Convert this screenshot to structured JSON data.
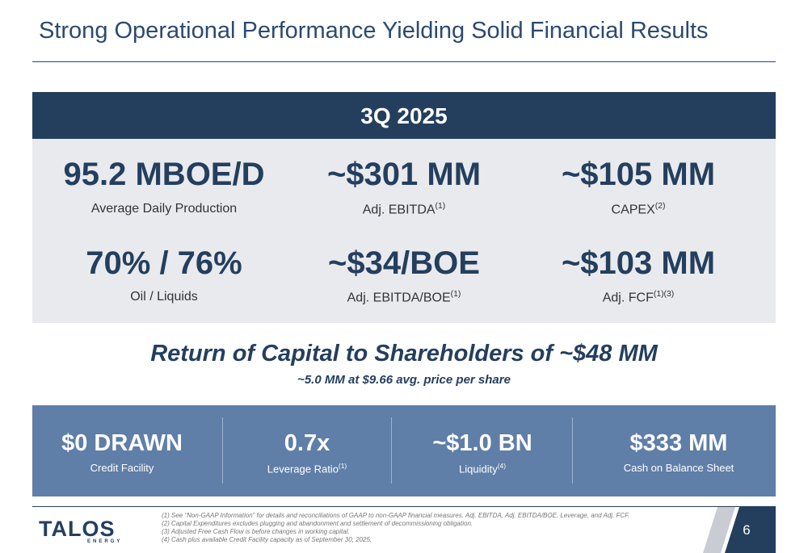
{
  "header": {
    "title": "Strong Operational Performance Yielding Solid Financial Results"
  },
  "banner": {
    "period": "3Q 2025"
  },
  "metrics": [
    {
      "value": "95.2 MBOE/D",
      "label": "Average Daily Production"
    },
    {
      "value": "~$301 MM",
      "label": "Adj. EBITDA",
      "note": "(1)"
    },
    {
      "value": "~$105 MM",
      "label": "CAPEX",
      "note": "(2)"
    },
    {
      "value": "70% / 76%",
      "label": "Oil / Liquids"
    },
    {
      "value": "~$34/BOE",
      "label": "Adj. EBITDA/BOE",
      "note": "(1)"
    },
    {
      "value": "~$103 MM",
      "label": "Adj. FCF",
      "note": "(1)(3)"
    }
  ],
  "return": {
    "title": "Return of Capital to Shareholders of ~$48 MM",
    "subtitle": "~5.0 MM at $9.66 avg. price per share"
  },
  "balance": [
    {
      "value": "$0 DRAWN",
      "label": "Credit Facility"
    },
    {
      "value": "0.7x",
      "label": "Leverage Ratio",
      "note": "(1)"
    },
    {
      "value": "~$1.0 BN",
      "label": "Liquidity",
      "note": "(4)"
    },
    {
      "value": "$333 MM",
      "label": "Cash on Balance Sheet"
    }
  ],
  "footer": {
    "logo": "TALOS",
    "logo_sub": "ENERGY",
    "footnotes": [
      "(1)  See “Non-GAAP Information” for details and reconciliations of GAAP to non-GAAP financial measures. Adj. EBITDA, Adj. EBITDA/BOE, Leverage, and Adj. FCF.",
      "(2)  Capital Expenditures excludes plugging and abandonment and settlement of decommissioning obligation.",
      "(3)  Adjusted Free Cash Flow is before changes in working capital.",
      "(4)  Cash plus available Credit Facility capacity as of September 30, 2025."
    ],
    "page": "6"
  }
}
